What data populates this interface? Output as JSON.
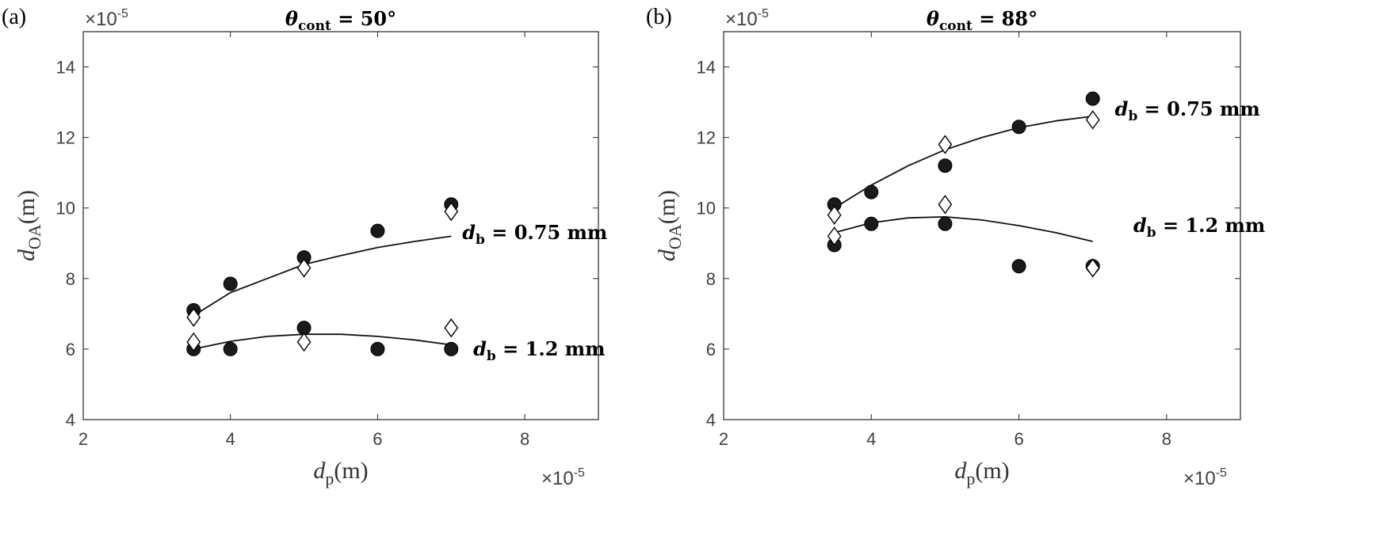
{
  "chart_data": [
    {
      "type": "scatter",
      "panel_label": "(a)",
      "title": "θ_cont = 50°",
      "title_parts": {
        "sym": "θ",
        "sub": "cont",
        "rest": " = 50°"
      },
      "xlabel": {
        "sym": "d",
        "sub": "p",
        "unit": "(m)"
      },
      "ylabel": {
        "sym": "d",
        "sub": "OA",
        "unit": "(m)"
      },
      "x_scale_label": "×10",
      "y_scale_label": "×10",
      "scale_exponent": "-5",
      "xlim": [
        2,
        9
      ],
      "ylim": [
        4,
        15
      ],
      "xticks": [
        2,
        4,
        6,
        8
      ],
      "yticks": [
        4,
        6,
        8,
        10,
        12,
        14
      ],
      "series": [
        {
          "name": "d_b = 0.75 mm filled",
          "marker": "circle",
          "x": [
            3.5,
            4,
            5,
            6,
            7
          ],
          "y": [
            7.1,
            7.85,
            8.6,
            9.35,
            10.1
          ]
        },
        {
          "name": "d_b = 0.75 mm open",
          "marker": "diamond",
          "x": [
            3.5,
            5,
            7
          ],
          "y": [
            6.9,
            8.3,
            9.9
          ]
        },
        {
          "name": "d_b = 1.2 mm filled",
          "marker": "circle",
          "x": [
            3.5,
            4,
            5,
            6,
            7
          ],
          "y": [
            6.0,
            6.0,
            6.6,
            6.0,
            6.0
          ]
        },
        {
          "name": "d_b = 1.2 mm open",
          "marker": "diamond",
          "x": [
            3.5,
            5,
            7
          ],
          "y": [
            6.2,
            6.2,
            6.6
          ]
        }
      ],
      "fits": [
        {
          "x": [
            3.5,
            4,
            4.5,
            5,
            5.5,
            6,
            6.5,
            7
          ],
          "y": [
            6.95,
            7.6,
            8.0,
            8.4,
            8.65,
            8.88,
            9.05,
            9.2
          ]
        },
        {
          "x": [
            3.5,
            4,
            4.5,
            5,
            5.5,
            6,
            6.5,
            7
          ],
          "y": [
            6.0,
            6.22,
            6.36,
            6.42,
            6.42,
            6.36,
            6.26,
            6.12
          ]
        }
      ],
      "annotations": [
        {
          "sym": "d",
          "sub": "b",
          "rest": " = 0.75 mm",
          "x": 7.15,
          "y": 9.3
        },
        {
          "sym": "d",
          "sub": "b",
          "rest": " = 1.2 mm",
          "x": 7.3,
          "y": 6.0
        }
      ]
    },
    {
      "type": "scatter",
      "panel_label": "(b)",
      "title": "θ_cont = 88°",
      "title_parts": {
        "sym": "θ",
        "sub": "cont",
        "rest": " = 88°"
      },
      "xlabel": {
        "sym": "d",
        "sub": "p",
        "unit": "(m)"
      },
      "ylabel": {
        "sym": "d",
        "sub": "OA",
        "unit": "(m)"
      },
      "x_scale_label": "×10",
      "y_scale_label": "×10",
      "scale_exponent": "-5",
      "xlim": [
        2,
        9
      ],
      "ylim": [
        4,
        15
      ],
      "xticks": [
        2,
        4,
        6,
        8
      ],
      "yticks": [
        4,
        6,
        8,
        10,
        12,
        14
      ],
      "series": [
        {
          "name": "d_b = 0.75 mm filled",
          "marker": "circle",
          "x": [
            3.5,
            4,
            5,
            6,
            7
          ],
          "y": [
            10.1,
            10.45,
            11.2,
            12.3,
            13.1
          ]
        },
        {
          "name": "d_b = 0.75 mm open",
          "marker": "diamond",
          "x": [
            3.5,
            5,
            7
          ],
          "y": [
            9.8,
            11.8,
            12.5
          ]
        },
        {
          "name": "d_b = 1.2 mm filled",
          "marker": "circle",
          "x": [
            3.5,
            4,
            5,
            6,
            7
          ],
          "y": [
            8.95,
            9.55,
            9.55,
            8.35,
            8.35
          ]
        },
        {
          "name": "d_b = 1.2 mm open",
          "marker": "diamond",
          "x": [
            3.5,
            5,
            7
          ],
          "y": [
            9.2,
            10.1,
            8.3
          ]
        }
      ],
      "fits": [
        {
          "x": [
            3.5,
            4,
            4.5,
            5,
            5.5,
            6,
            6.5,
            7
          ],
          "y": [
            10.0,
            10.65,
            11.2,
            11.65,
            12.0,
            12.28,
            12.47,
            12.6
          ]
        },
        {
          "x": [
            3.5,
            4,
            4.5,
            5,
            5.5,
            6,
            6.5,
            7
          ],
          "y": [
            9.3,
            9.58,
            9.72,
            9.75,
            9.66,
            9.5,
            9.3,
            9.05
          ]
        }
      ],
      "annotations": [
        {
          "sym": "d",
          "sub": "b",
          "rest": " = 0.75 mm",
          "x": 7.3,
          "y": 12.8
        },
        {
          "sym": "d",
          "sub": "b",
          "rest": " = 1.2 mm",
          "x": 7.55,
          "y": 9.5
        }
      ]
    }
  ]
}
